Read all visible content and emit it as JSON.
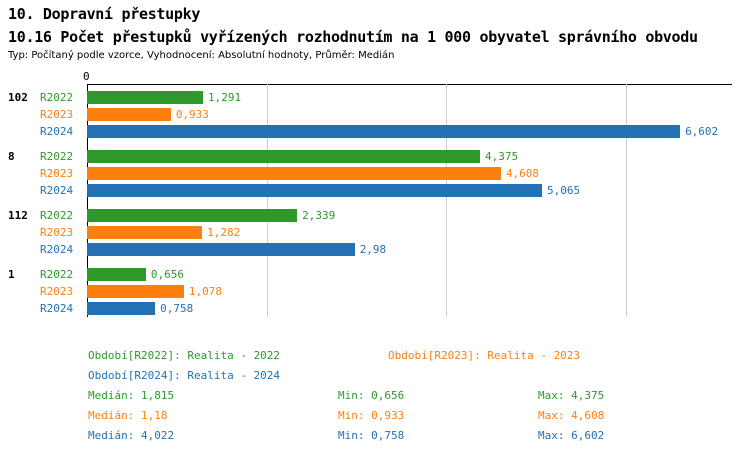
{
  "header": {
    "title": "10. Dopravní přestupky",
    "subtitle": "10.16 Počet přestupků vyřízených rozhodnutím na 1 000 obyvatel správního obvodu",
    "meta": "Typ: Počítaný podle vzorce, Vyhodnocení: Absolutní hodnoty, Průměr: Medián"
  },
  "chart_data": {
    "type": "bar",
    "orientation": "horizontal",
    "x_origin_label": "0",
    "axis_max": 7.18,
    "gridline_values": [
      2,
      4,
      6
    ],
    "grid": true,
    "series": [
      {
        "name": "R2022",
        "color": "#2e9929",
        "legend": "Období[R2022]: Realita - 2022",
        "median_label": "Medián: 1,815",
        "min_label": "Min: 0,656",
        "max_label": "Max: 4,375"
      },
      {
        "name": "R2023",
        "color": "#ff7f0e",
        "legend": "Období[R2023]: Realita - 2023",
        "median_label": "Medián: 1,18",
        "min_label": "Min: 0,933",
        "max_label": "Max: 4,608"
      },
      {
        "name": "R2024",
        "color": "#2272b5",
        "legend": "Období[R2024]: Realita - 2024",
        "median_label": "Medián: 4,022",
        "min_label": "Min: 0,758",
        "max_label": "Max: 6,602"
      }
    ],
    "groups": [
      {
        "label": "102",
        "values": [
          1.291,
          0.933,
          6.602
        ],
        "displays": [
          "1,291",
          "0,933",
          "6,602"
        ]
      },
      {
        "label": "8",
        "values": [
          4.375,
          4.608,
          5.065
        ],
        "displays": [
          "4,375",
          "4,608",
          "5,065"
        ]
      },
      {
        "label": "112",
        "values": [
          2.339,
          1.282,
          2.98
        ],
        "displays": [
          "2,339",
          "1,282",
          "2,98"
        ]
      },
      {
        "label": "1",
        "values": [
          0.656,
          1.078,
          0.758
        ],
        "displays": [
          "0,656",
          "1,078",
          "0,758"
        ]
      }
    ]
  }
}
